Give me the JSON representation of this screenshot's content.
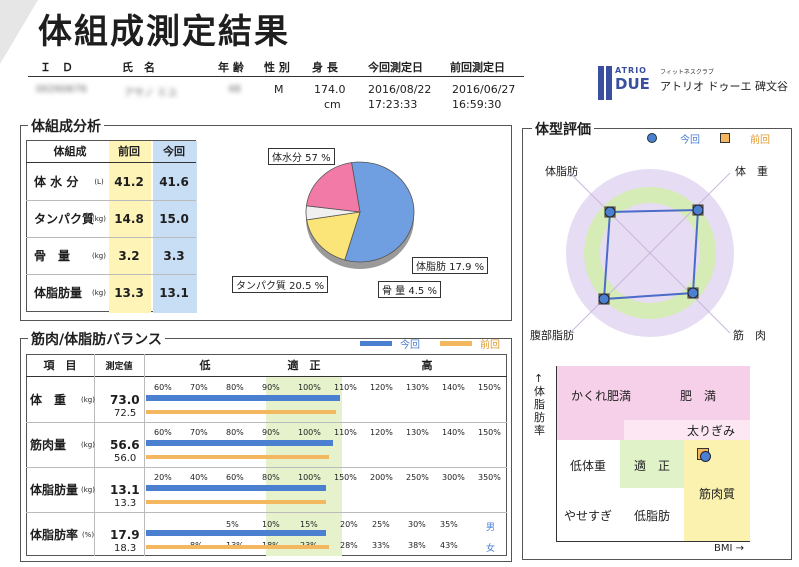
{
  "title": "体組成測定結果",
  "header": {
    "id_label": "Ｉ　Ｄ",
    "name_label": "氏　名",
    "age_label": "年 齢",
    "sex_label": "性 別",
    "height_label": "身 長",
    "current_date_label": "今回測定日",
    "previous_date_label": "前回測定日",
    "id_value": "00260676",
    "name_value": "アサノ ミユ",
    "age_value": "48",
    "sex_value": "M",
    "height_value": "174.0",
    "height_unit": "cm",
    "current_date": "2016/08/22",
    "current_time": "17:23:33",
    "previous_date": "2016/06/27",
    "previous_time": "16:59:30"
  },
  "brand": {
    "roman_top": "ATRIO",
    "roman_bottom": "DUE",
    "kana_small": "フィットネスクラブ",
    "name_jp": "アトリオ ドゥーエ 碑文谷",
    "brand_color": "#3a4fa0"
  },
  "composition": {
    "section_title": "体組成分析",
    "col_item": "体組成",
    "col_prev": "前回",
    "col_curr": "今回",
    "rows": [
      {
        "name": "体 水 分",
        "unit": "(L)",
        "prev": "41.2",
        "curr": "41.6"
      },
      {
        "name": "タンパク質",
        "unit": "(kg)",
        "prev": "14.8",
        "curr": "15.0"
      },
      {
        "name": "骨　量",
        "unit": "(kg)",
        "prev": "3.2",
        "curr": "3.3"
      },
      {
        "name": "体脂肪量",
        "unit": "(kg)",
        "prev": "13.3",
        "curr": "13.1"
      }
    ],
    "prev_color": "#fff4b8",
    "curr_color": "#c7def4"
  },
  "chart_data": {
    "type": "pie",
    "slices": [
      {
        "label": "体水分 57 %",
        "value": 57,
        "color": "#6f9fe0"
      },
      {
        "label": "体脂肪 17.9 %",
        "value": 17.9,
        "color": "#fbe478"
      },
      {
        "label": "骨 量 4.5 %",
        "value": 4.5,
        "color": "#f0f0f0"
      },
      {
        "label": "タンパク質 20.5 %",
        "value": 20.5,
        "color": "#f27aa6"
      }
    ]
  },
  "balance": {
    "section_title": "筋肉/体脂肪バランス",
    "legend_current": "今回",
    "legend_previous": "前回",
    "col_item": "項　目",
    "col_value": "測定値",
    "col_low": "低",
    "col_normal": "適　正",
    "col_high": "高",
    "scale_std": [
      "60%",
      "70%",
      "80%",
      "90%",
      "100%",
      "110%",
      "120%",
      "130%",
      "140%",
      "150%"
    ],
    "scale_fat": [
      "20%",
      "40%",
      "60%",
      "80%",
      "100%",
      "150%",
      "200%",
      "250%",
      "300%",
      "350%"
    ],
    "scale_pct_male": [
      "5%",
      "10%",
      "15%",
      "20%",
      "25%",
      "30%",
      "35%"
    ],
    "scale_pct_female": [
      "8%",
      "13%",
      "18%",
      "23%",
      "28%",
      "33%",
      "38%",
      "43%"
    ],
    "male_label": "男",
    "female_label": "女",
    "rows": [
      {
        "name": "体　重",
        "unit": "(kg)",
        "curr": "73.0",
        "prev": "72.5",
        "curr_pct": 110,
        "prev_pct": 109
      },
      {
        "name": "筋肉量",
        "unit": "(kg)",
        "curr": "56.6",
        "prev": "56.0",
        "curr_pct": 108,
        "prev_pct": 107
      },
      {
        "name": "体脂肪量",
        "unit": "(kg)",
        "curr": "13.1",
        "prev": "13.3",
        "curr_pct": 105,
        "prev_pct": 106
      },
      {
        "name": "体脂肪率",
        "unit": "(%)",
        "curr": "17.9",
        "prev": "18.3",
        "curr_pct": 17.9,
        "prev_pct": 18.3
      }
    ],
    "curr_color": "#4b7fd0",
    "prev_color": "#f3b760"
  },
  "body_type": {
    "section_title": "体型評価",
    "legend_current": "今回",
    "legend_previous": "前回",
    "axis_top_left": "体脂肪",
    "axis_top_right": "体　重",
    "axis_bottom_left": "腹部脂肪",
    "axis_bottom_right": "筋　肉",
    "y_axis_label": "↑体脂肪率",
    "x_axis_label": "BMI →",
    "zones": {
      "hidden_obesity": "かくれ肥満",
      "obesity": "肥　満",
      "overweight": "太りぎみ",
      "underweight": "低体重",
      "normal": "適　正",
      "muscular": "筋肉質",
      "too_thin": "やせすぎ",
      "low_fat": "低脂肪"
    }
  }
}
